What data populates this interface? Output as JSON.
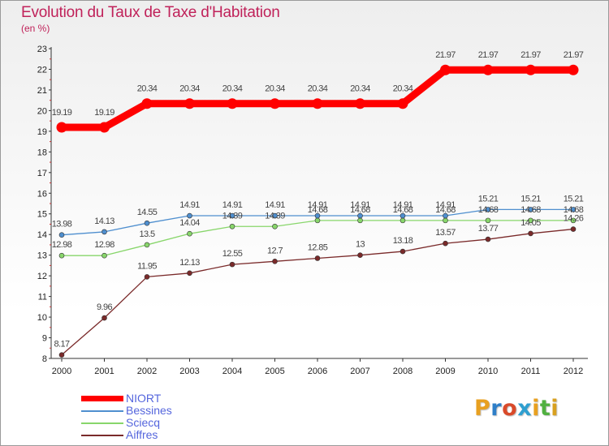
{
  "header": {
    "title": "Evolution du Taux de Taxe d'Habitation",
    "subtitle": "(en %)"
  },
  "logo": {
    "text": "Proxiti",
    "colors": [
      "#e8a020",
      "#2f7fc8",
      "#d94a2a",
      "#2f9fd0",
      "#e8a020",
      "#50b040",
      "#d8a020"
    ]
  },
  "chart_data": {
    "type": "line",
    "title": "Evolution du Taux de Taxe d'Habitation",
    "ylabel": "(en %)",
    "xlabel": "",
    "x": [
      "2000",
      "2001",
      "2002",
      "2003",
      "2004",
      "2005",
      "2006",
      "2007",
      "2008",
      "2009",
      "2010",
      "2011",
      "2012"
    ],
    "ylim": [
      8,
      23
    ],
    "yticks": [
      "8",
      "9",
      "10",
      "11",
      "12",
      "13",
      "14",
      "15",
      "16",
      "17",
      "18",
      "19",
      "20",
      "21",
      "22",
      "23"
    ],
    "grid": false,
    "legend_position": "bottom-left",
    "series": [
      {
        "name": "NIORT",
        "color": "#ff0000",
        "values": [
          19.19,
          19.19,
          20.34,
          20.34,
          20.34,
          20.34,
          20.34,
          20.34,
          20.34,
          21.97,
          21.97,
          21.97,
          21.97
        ],
        "labels": [
          "19.19",
          "19.19",
          "20.34",
          "20.34",
          "20.34",
          "20.34",
          "20.34",
          "20.34",
          "20.34",
          "21.97",
          "21.97",
          "21.97",
          "21.97"
        ]
      },
      {
        "name": "Bessines",
        "color": "#4f8fcf",
        "values": [
          13.98,
          14.13,
          14.55,
          14.91,
          14.91,
          14.91,
          14.91,
          14.91,
          14.91,
          14.91,
          15.21,
          15.21,
          15.21
        ],
        "labels": [
          "13.98",
          "14.13",
          "14.55",
          "14.91",
          "14.91",
          "14.91",
          "14.91",
          "14.91",
          "14.91",
          "14.91",
          "15.21",
          "15.21",
          "15.21"
        ]
      },
      {
        "name": "Sciecq",
        "color": "#88d66b",
        "values": [
          12.98,
          12.98,
          13.5,
          14.04,
          14.39,
          14.39,
          14.68,
          14.68,
          14.68,
          14.68,
          14.68,
          14.68,
          14.68
        ],
        "labels": [
          "12.98",
          "12.98",
          "13.5",
          "14.04",
          "14.39",
          "14.39",
          "14.68",
          "14.68",
          "14.68",
          "14.68",
          "14.68",
          "14.68",
          "14.68"
        ]
      },
      {
        "name": "Aiffres",
        "color": "#7a2a2a",
        "values": [
          8.17,
          9.96,
          11.95,
          12.13,
          12.55,
          12.7,
          12.85,
          13.0,
          13.18,
          13.57,
          13.77,
          14.05,
          14.26
        ],
        "labels": [
          "8.17",
          "9.96",
          "11.95",
          "12.13",
          "12.55",
          "12.7",
          "12.85",
          "13",
          "13.18",
          "13.57",
          "13.77",
          "14.05",
          "14.26"
        ]
      }
    ]
  }
}
